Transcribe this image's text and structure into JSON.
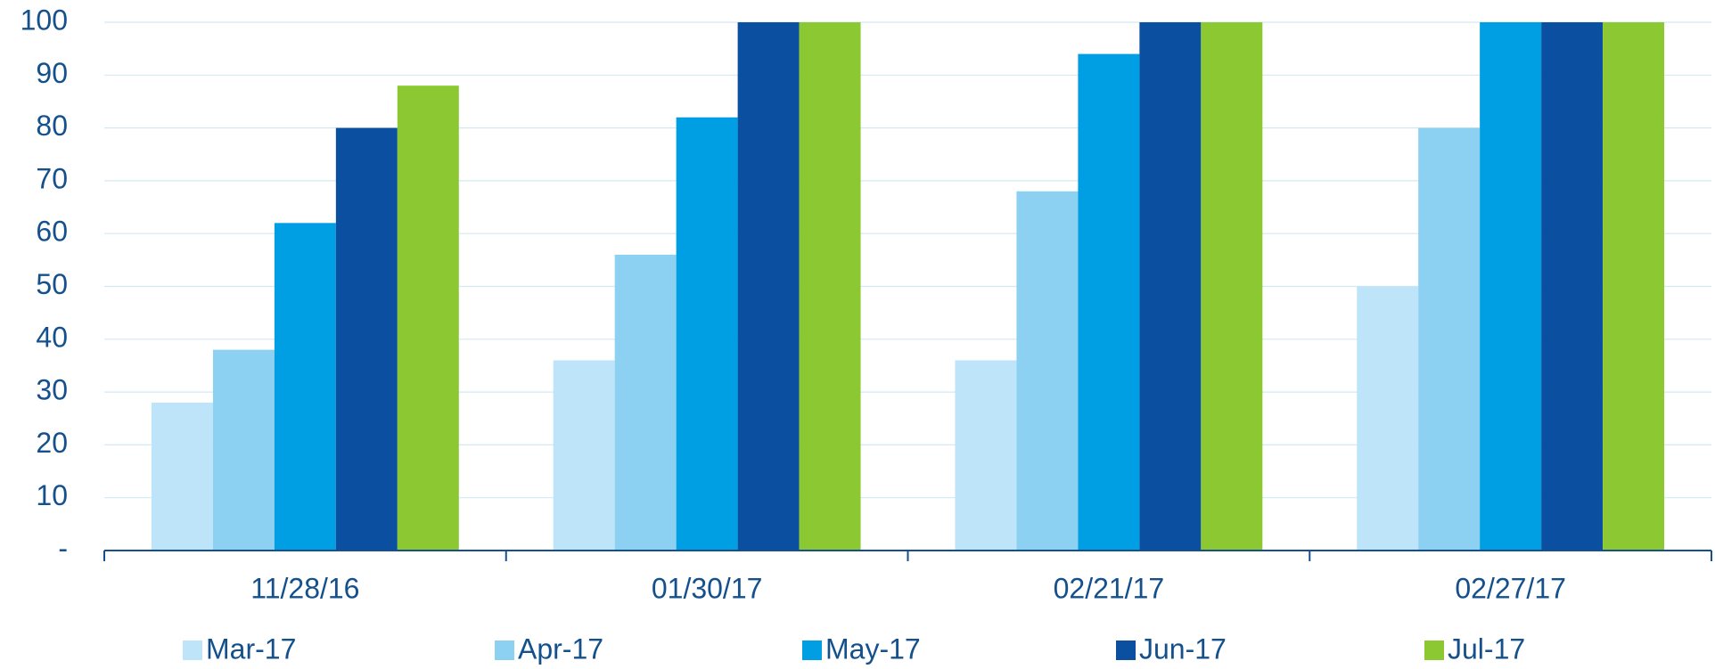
{
  "chart_data": {
    "type": "bar",
    "categories": [
      "11/28/16",
      "01/30/17",
      "02/21/17",
      "02/27/17"
    ],
    "series": [
      {
        "name": "Mar-17",
        "color": "#bde4f8",
        "values": [
          28,
          36,
          36,
          50
        ]
      },
      {
        "name": "Apr-17",
        "color": "#8cd0f2",
        "values": [
          38,
          56,
          68,
          80
        ]
      },
      {
        "name": "May-17",
        "color": "#009fe3",
        "values": [
          62,
          82,
          94,
          100
        ]
      },
      {
        "name": "Jun-17",
        "color": "#0a4fa0",
        "values": [
          80,
          100,
          100,
          100
        ]
      },
      {
        "name": "Jul-17",
        "color": "#8cc832",
        "values": [
          88,
          100,
          100,
          100
        ]
      }
    ],
    "ylim": [
      0,
      100
    ],
    "yticks": [
      {
        "value": 0,
        "label": "-"
      },
      10,
      20,
      30,
      40,
      50,
      60,
      70,
      80,
      90,
      100
    ],
    "grid": true,
    "legend": "bottom"
  }
}
